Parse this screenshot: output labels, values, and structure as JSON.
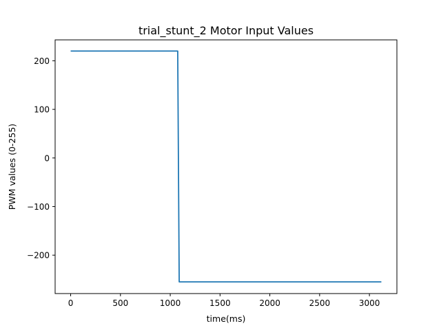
{
  "chart_data": {
    "type": "line",
    "title": "trial_stunt_2 Motor Input Values",
    "xlabel": "time(ms)",
    "ylabel": "PWM values (0-255)",
    "xlim": [
      -156,
      3276
    ],
    "ylim": [
      -279,
      243
    ],
    "xticks": [
      0,
      500,
      1000,
      1500,
      2000,
      2500,
      3000
    ],
    "xtick_labels": [
      "0",
      "500",
      "1000",
      "1500",
      "2000",
      "2500",
      "3000"
    ],
    "yticks": [
      200,
      100,
      0,
      -100,
      -200
    ],
    "ytick_labels": [
      "200",
      "100",
      "0",
      "−100",
      "−200"
    ],
    "grid": false,
    "series": [
      {
        "color": "#1f77b4",
        "x": [
          0,
          1075,
          1090,
          3120
        ],
        "y": [
          220,
          220,
          -255,
          -255
        ]
      }
    ]
  }
}
